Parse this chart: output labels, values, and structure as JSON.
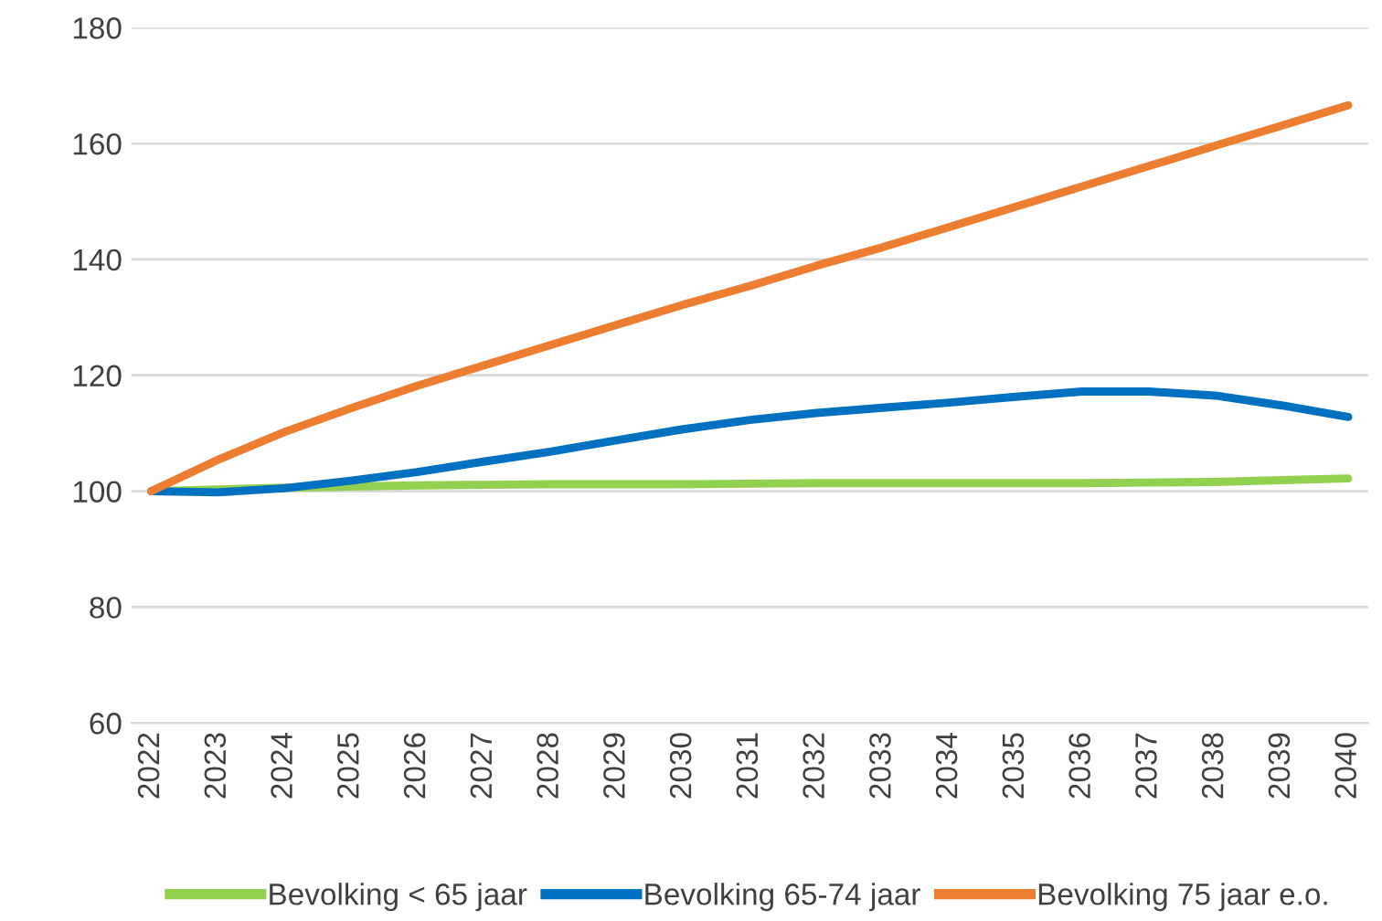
{
  "chart_data": {
    "type": "line",
    "categories": [
      "2022",
      "2023",
      "2024",
      "2025",
      "2026",
      "2027",
      "2028",
      "2029",
      "2030",
      "2031",
      "2032",
      "2033",
      "2034",
      "2035",
      "2036",
      "2037",
      "2038",
      "2039",
      "2040"
    ],
    "series": [
      {
        "name": "Bevolking < 65 jaar",
        "color": "#92d050",
        "values": [
          100,
          100.3,
          100.6,
          100.8,
          101.0,
          101.1,
          101.2,
          101.2,
          101.2,
          101.3,
          101.4,
          101.4,
          101.4,
          101.4,
          101.4,
          101.5,
          101.6,
          101.9,
          102.2
        ]
      },
      {
        "name": "Bevolking 65-74 jaar",
        "color": "#0070c0",
        "values": [
          100,
          99.8,
          100.5,
          101.8,
          103.3,
          105.1,
          106.8,
          108.8,
          110.7,
          112.3,
          113.5,
          114.4,
          115.3,
          116.3,
          117.2,
          117.2,
          116.5,
          114.8,
          112.8
        ]
      },
      {
        "name": "Bevolking 75 jaar e.o.",
        "color": "#ed7d31",
        "values": [
          100,
          105.4,
          110.2,
          114.3,
          118.2,
          121.7,
          125.2,
          128.7,
          132.2,
          135.4,
          138.9,
          142.1,
          145.6,
          149.1,
          152.6,
          156.1,
          159.6,
          163.1,
          166.6
        ]
      }
    ],
    "ylim": [
      60,
      180
    ],
    "yticks": [
      60,
      80,
      100,
      120,
      140,
      160,
      180
    ],
    "grid": "y",
    "legend": "bottom",
    "marker": "none",
    "line_style": "solid"
  }
}
